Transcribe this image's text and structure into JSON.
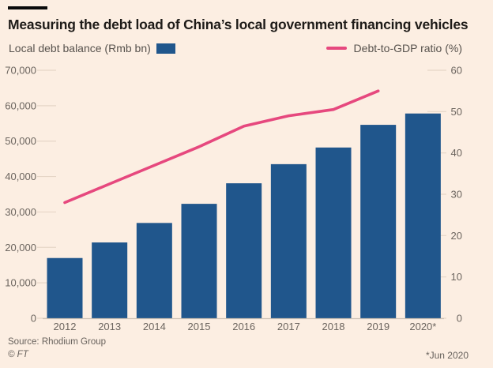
{
  "header": {
    "title": "Measuring the debt load of China’s local government financing vehicles"
  },
  "legend": {
    "bars_label": "Local debt balance (Rmb bn)",
    "line_label": "Debt-to-GDP ratio (%)"
  },
  "footer": {
    "source": "Source: Rhodium Group",
    "copyright": "© FT",
    "note": "*Jun 2020"
  },
  "colors": {
    "background": "#FCEEE2",
    "bar": "#20568C",
    "line": "#E6487E",
    "title_text": "#1E1B18",
    "legend_text": "#57524D",
    "axis_text": "#6C655F",
    "muted_text": "#67615C",
    "tick_stub": "#E6D6C7",
    "baseline": "#CCC1B5"
  },
  "chart_data": {
    "type": "bar",
    "subtype": "bar+line combo, dual axis",
    "title": "Measuring the debt load of China’s local government financing vehicles",
    "categories": [
      "2012",
      "2013",
      "2014",
      "2015",
      "2016",
      "2017",
      "2018",
      "2019",
      "2020*"
    ],
    "series": [
      {
        "name": "Local debt balance (Rmb bn)",
        "type": "bar",
        "axis": "left",
        "values": [
          17000,
          21400,
          26900,
          32300,
          38100,
          43500,
          48200,
          54600,
          57800
        ]
      },
      {
        "name": "Debt-to-GDP ratio (%)",
        "type": "line",
        "axis": "right",
        "values": [
          28,
          32.5,
          37,
          41.5,
          46.5,
          49,
          50.5,
          55,
          null
        ]
      }
    ],
    "left_axis": {
      "min": 0,
      "max": 70000,
      "tick_values": [
        0,
        10000,
        20000,
        30000,
        40000,
        50000,
        60000,
        70000
      ],
      "tick_labels": [
        "0",
        "10,000",
        "20,000",
        "30,000",
        "40,000",
        "50,000",
        "60,000",
        "70,000"
      ]
    },
    "right_axis": {
      "min": 0,
      "max": 60,
      "tick_values": [
        0,
        10,
        20,
        30,
        40,
        50,
        60
      ],
      "tick_labels": [
        "0",
        "10",
        "20",
        "30",
        "40",
        "50",
        "60"
      ]
    },
    "grid": "short tick stubs at both sides, no full-width gridlines",
    "legend_position": "top"
  }
}
